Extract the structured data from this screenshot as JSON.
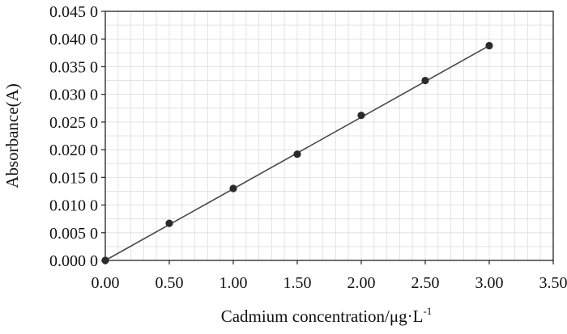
{
  "chart_data": {
    "type": "scatter",
    "title": "",
    "xlabel": "Cadmium concentration/μg·L",
    "xlabel_superscript": "-1",
    "ylabel": "Absorbance(A)",
    "xlim": [
      0,
      3.5
    ],
    "ylim": [
      0,
      0.045
    ],
    "x_ticks": [
      "0.00",
      "0.50",
      "1.00",
      "1.50",
      "2.00",
      "2.50",
      "3.00",
      "3.50"
    ],
    "y_ticks": [
      "0.000 0",
      "0.005 0",
      "0.010 0",
      "0.015 0",
      "0.020 0",
      "0.025 0",
      "0.030 0",
      "0.035 0",
      "0.040 0",
      "0.045 0"
    ],
    "grid": true,
    "series": [
      {
        "x": [
          0.0,
          0.5,
          1.0,
          1.5,
          2.0,
          2.5,
          3.0
        ],
        "y": [
          0.0,
          0.0067,
          0.013,
          0.0192,
          0.0262,
          0.0325,
          0.0388
        ],
        "marker_color": "#2b2b2b"
      }
    ],
    "fit_line": {
      "x": [
        0.0,
        3.0
      ],
      "y": [
        0.0,
        0.0388
      ],
      "color": "#4a4a4a"
    },
    "grid_color": "#e3e3e3",
    "axis_color": "#222222"
  }
}
